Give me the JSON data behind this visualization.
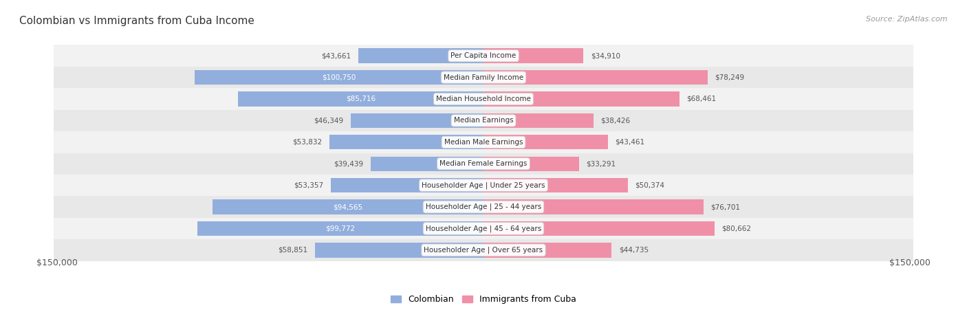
{
  "title": "Colombian vs Immigrants from Cuba Income",
  "source": "Source: ZipAtlas.com",
  "categories": [
    "Per Capita Income",
    "Median Family Income",
    "Median Household Income",
    "Median Earnings",
    "Median Male Earnings",
    "Median Female Earnings",
    "Householder Age | Under 25 years",
    "Householder Age | 25 - 44 years",
    "Householder Age | 45 - 64 years",
    "Householder Age | Over 65 years"
  ],
  "colombian_values": [
    43661,
    100750,
    85716,
    46349,
    53832,
    39439,
    53357,
    94565,
    99772,
    58851
  ],
  "cuba_values": [
    34910,
    78249,
    68461,
    38426,
    43461,
    33291,
    50374,
    76701,
    80662,
    44735
  ],
  "colombian_labels": [
    "$43,661",
    "$100,750",
    "$85,716",
    "$46,349",
    "$53,832",
    "$39,439",
    "$53,357",
    "$94,565",
    "$99,772",
    "$58,851"
  ],
  "cuba_labels": [
    "$34,910",
    "$78,249",
    "$68,461",
    "$38,426",
    "$43,461",
    "$33,291",
    "$50,374",
    "$76,701",
    "$80,662",
    "$44,735"
  ],
  "colombian_color": "#92AEDD",
  "cuba_color": "#F090A8",
  "max_value": 150000,
  "x_label_left": "$150,000",
  "x_label_right": "$150,000",
  "legend_colombian": "Colombian",
  "legend_cuba": "Immigrants from Cuba",
  "title_color": "#333333",
  "source_color": "#999999",
  "row_bg_even": "#F2F2F2",
  "row_bg_odd": "#E8E8E8",
  "white_text_threshold": 80000,
  "label_fontsize": 7.5,
  "cat_fontsize": 7.5,
  "title_fontsize": 11,
  "source_fontsize": 8
}
